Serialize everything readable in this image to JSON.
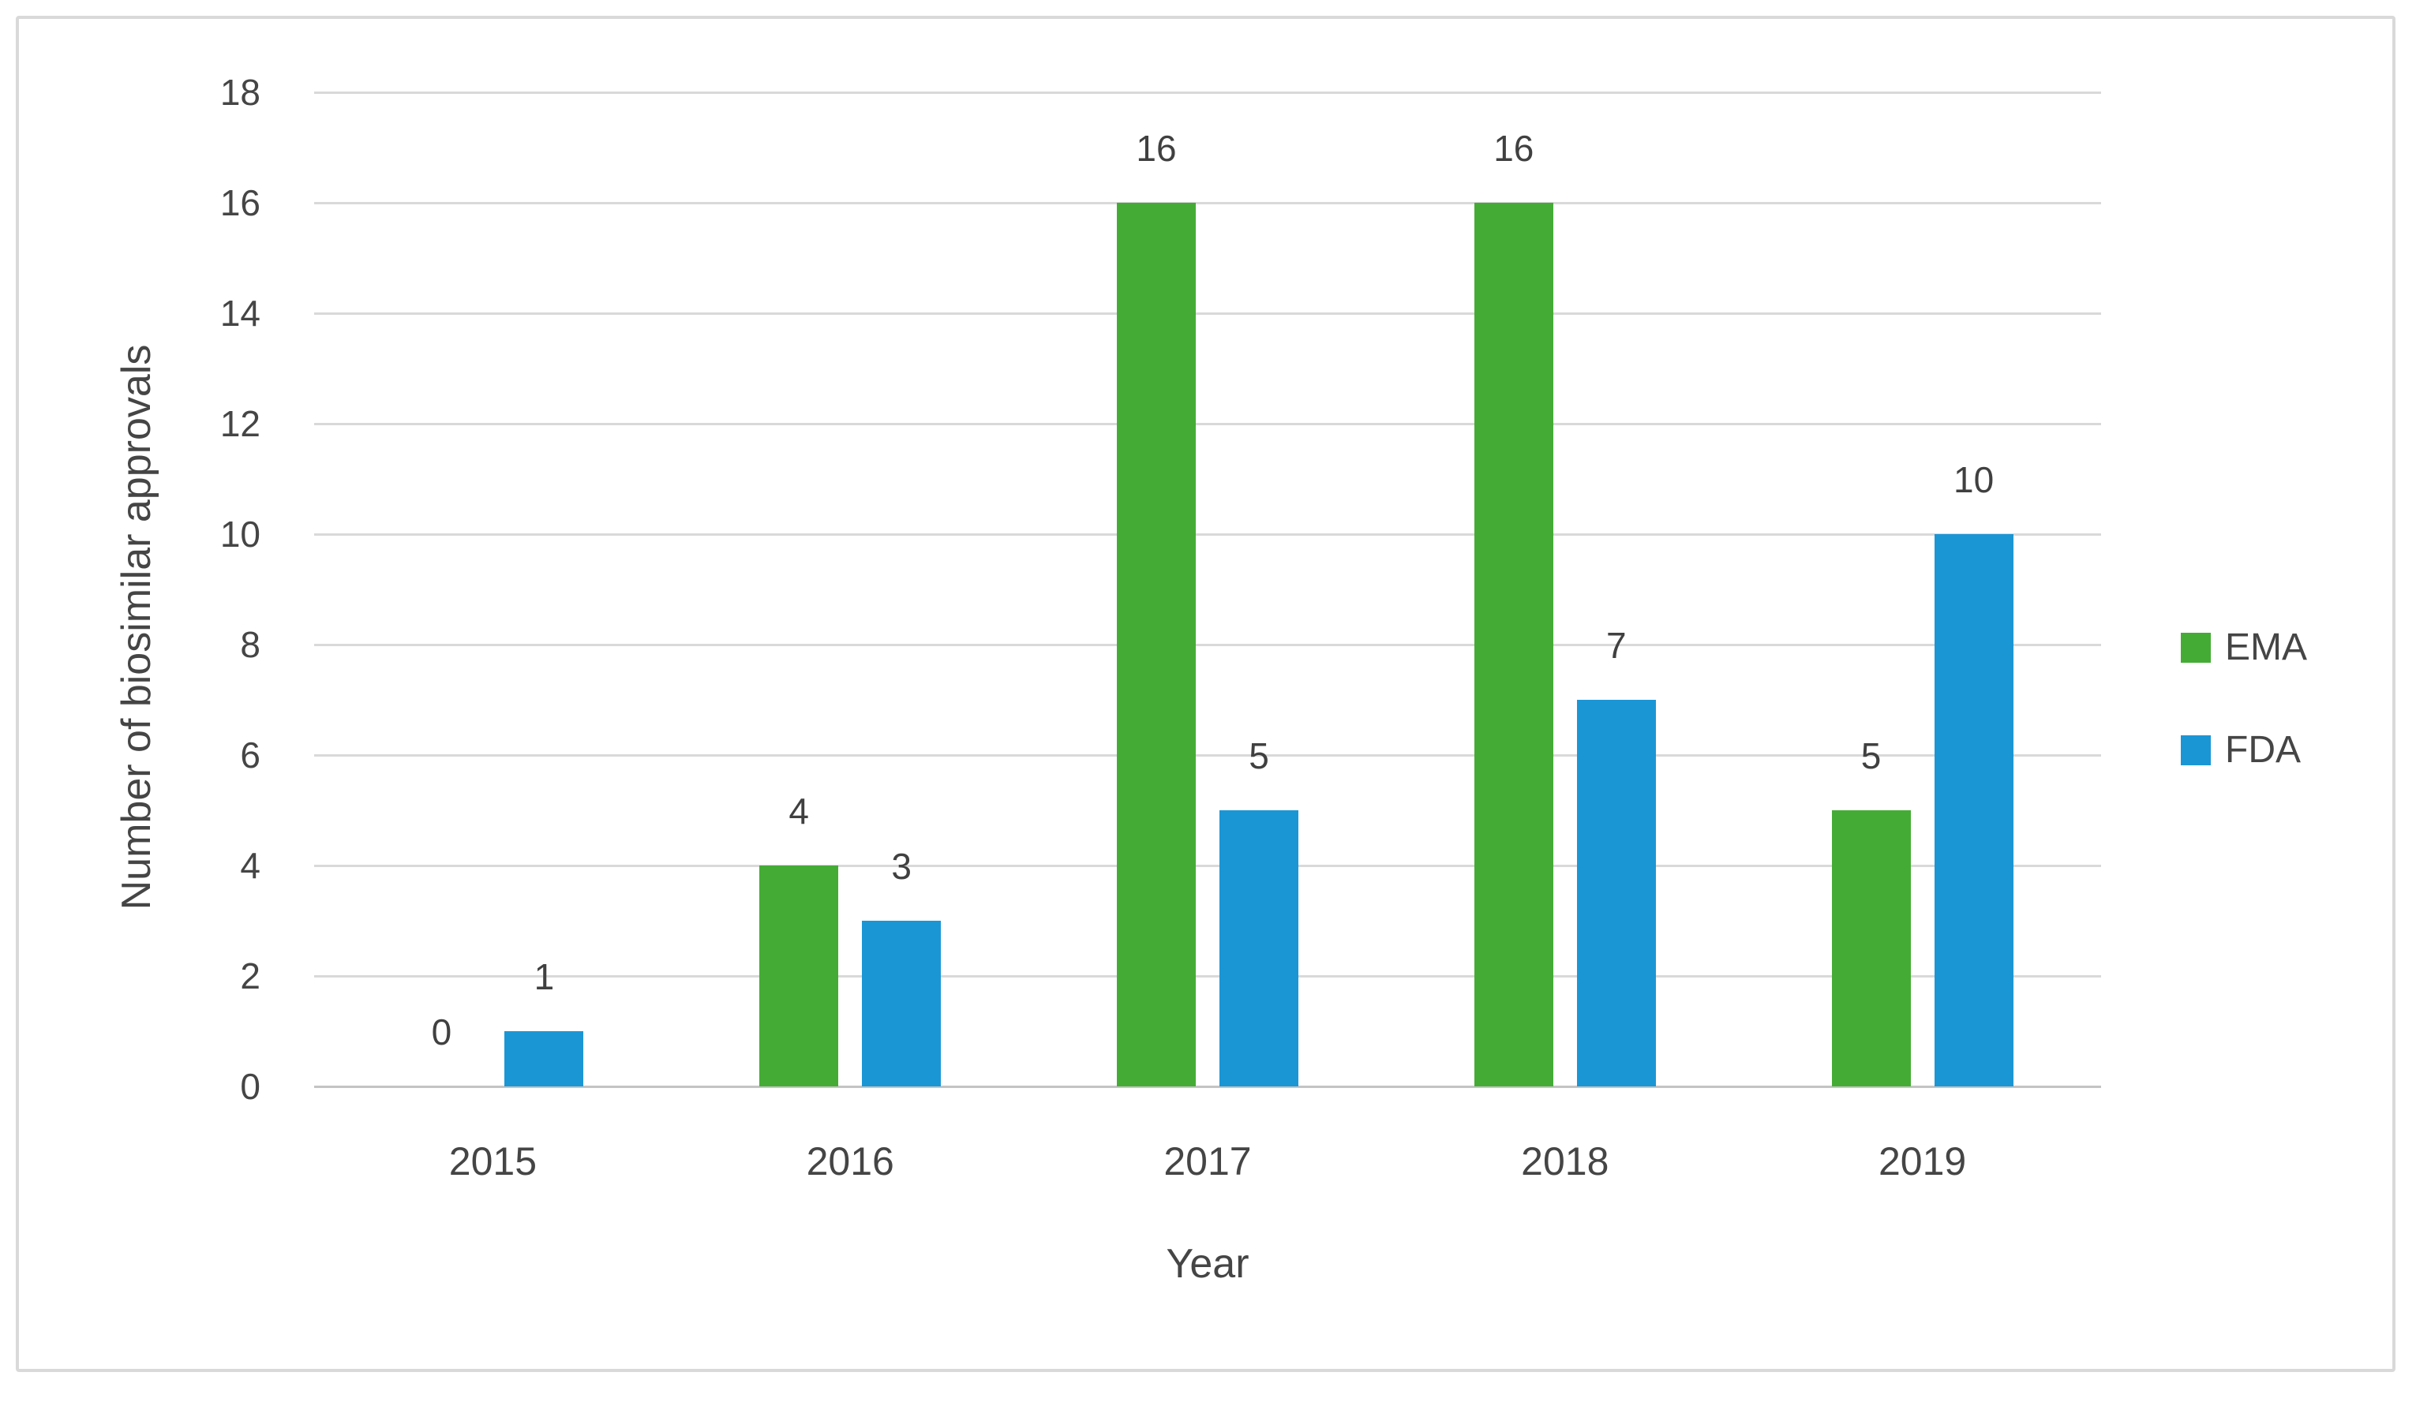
{
  "figure": {
    "background_color": "#FFFFFF",
    "border_color": "#D9D9D9",
    "gridline_color": "#D9D9D9",
    "axis_line_color": "#C4C4C4",
    "text_color": "#454545"
  },
  "chart_data": {
    "type": "bar",
    "xlabel": "Year",
    "ylabel": "Number of biosimilar approvals",
    "categories": [
      "2015",
      "2016",
      "2017",
      "2018",
      "2019"
    ],
    "series": [
      {
        "name": "EMA",
        "color": "#44AC34",
        "values": [
          0,
          4,
          16,
          16,
          5
        ]
      },
      {
        "name": "FDA",
        "color": "#1B96D5",
        "values": [
          1,
          3,
          5,
          7,
          10
        ]
      }
    ],
    "ylim": [
      0,
      18
    ],
    "ytick_step": 2,
    "grid": true,
    "data_labels": true,
    "legend_position": "right"
  }
}
